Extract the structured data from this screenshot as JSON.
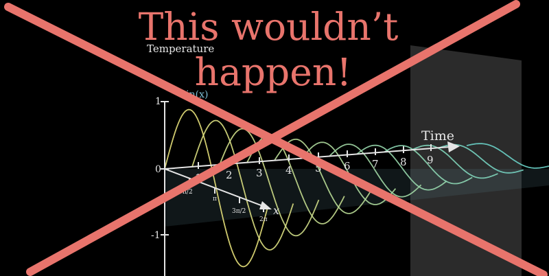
{
  "headline": {
    "line1": "This wouldn’t",
    "line2": "happen!"
  },
  "axes": {
    "temperature_label": "Temperature",
    "time_label": "Time",
    "x_label": "x",
    "function_label": "sin(x)",
    "temperature_ticks": [
      "1",
      "0",
      "-1"
    ],
    "time_ticks": [
      "1",
      "2",
      "3",
      "4",
      "5",
      "6",
      "7",
      "8",
      "9"
    ],
    "x_ticks": [
      "π/2",
      "π",
      "3π/2",
      "2π"
    ]
  },
  "colors": {
    "cross": "#e8746c",
    "headline": "#e8746c",
    "axis": "#e6e6e6",
    "wave_start": "#e6e07a",
    "wave_end": "#6ad2c8",
    "panel": "#3a3a3a"
  },
  "icons": {
    "cross": "x-mark-icon"
  }
}
